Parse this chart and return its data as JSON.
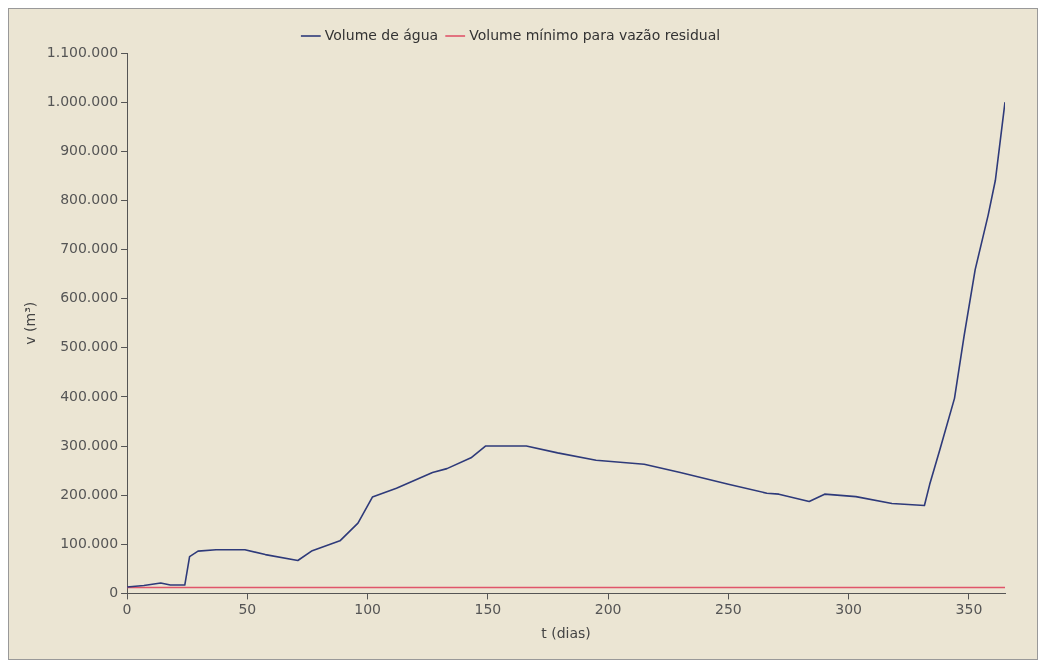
{
  "chart_data": {
    "type": "line",
    "xlabel": "t (dias)",
    "ylabel": "v (m³)",
    "xlim": [
      0,
      365
    ],
    "xticks": [
      0,
      50,
      100,
      150,
      200,
      250,
      300,
      350
    ],
    "ylim": [
      0,
      1100000
    ],
    "yticks": [
      {
        "value": 0,
        "label": "0"
      },
      {
        "value": 100000,
        "label": "100.000"
      },
      {
        "value": 200000,
        "label": "200.000"
      },
      {
        "value": 300000,
        "label": "300.000"
      },
      {
        "value": 400000,
        "label": "400.000"
      },
      {
        "value": 500000,
        "label": "500.000"
      },
      {
        "value": 600000,
        "label": "600.000"
      },
      {
        "value": 700000,
        "label": "700.000"
      },
      {
        "value": 800000,
        "label": "800.000"
      },
      {
        "value": 900000,
        "label": "900.000"
      },
      {
        "value": 1000000,
        "label": "1.000.000"
      },
      {
        "value": 1100000,
        "label": "1.100.000"
      }
    ],
    "grid": false,
    "legend": "top",
    "marker": "none",
    "line_style": "solid",
    "series": [
      {
        "name": "Volume de água",
        "color": "#2e3a7a",
        "x": [
          0,
          7,
          14,
          18,
          24,
          26,
          29.5,
          37,
          49,
          57.5,
          71,
          77,
          88.5,
          96,
          102,
          112,
          127,
          133,
          143,
          149,
          166,
          179,
          195,
          215,
          230,
          250,
          266,
          271,
          283.6,
          290,
          303,
          318,
          331.5,
          333.7,
          338,
          344,
          348,
          352.6,
          358,
          361,
          365
        ],
        "values": [
          13000,
          16000,
          21000,
          17000,
          17000,
          75000,
          86000,
          89000,
          89000,
          79000,
          67000,
          87000,
          107000,
          143000,
          196000,
          214000,
          246000,
          254000,
          276000,
          300000,
          300000,
          286000,
          271000,
          263000,
          246000,
          222000,
          204000,
          202000,
          187000,
          202000,
          197000,
          183000,
          179000,
          222000,
          294000,
          397000,
          524000,
          659000,
          770000,
          841000,
          1000000
        ]
      },
      {
        "name": "Volume mínimo para vazão residual",
        "color": "#e0556a",
        "x": [
          0,
          365
        ],
        "values": [
          12000,
          12000
        ]
      }
    ]
  }
}
